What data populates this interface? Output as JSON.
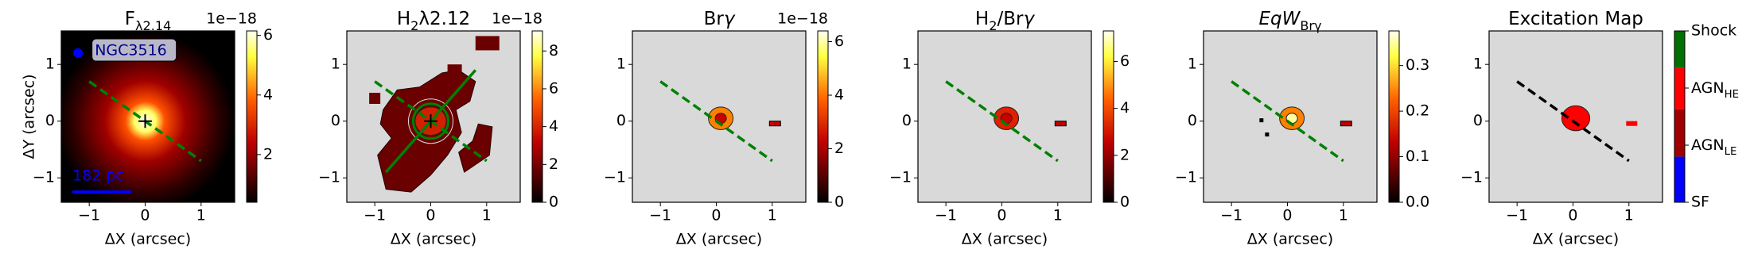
{
  "chart_data": [
    {
      "type": "image",
      "title": [
        {
          "text": "F"
        },
        {
          "text": "λ2.14",
          "sub": true
        }
      ],
      "offset_text": "1e−18",
      "xlabel": "ΔX (arcsec)",
      "ylabel": "ΔY (arcsec)",
      "colormap": "hot",
      "xlim": [
        -1.5,
        1.6
      ],
      "ylim": [
        -1.43,
        1.59
      ],
      "xticks": [
        {
          "value": -1,
          "label": "−1"
        },
        0,
        1
      ],
      "yticks": [
        {
          "value": -1,
          "label": "−1"
        },
        0,
        1
      ],
      "clim": [
        0.4,
        6.15
      ],
      "cticks": [
        2,
        4,
        6
      ],
      "annotations": [
        "NGC3516",
        "182 pc"
      ]
    },
    {
      "type": "image",
      "title": [
        {
          "text": "H"
        },
        {
          "text": "2",
          "sub": true
        },
        {
          "text": "λ2.12"
        }
      ],
      "offset_text": "1e−18",
      "xlabel": "ΔX (arcsec)",
      "colormap": "hot",
      "xlim": [
        -1.5,
        1.6
      ],
      "ylim": [
        -1.43,
        1.59
      ],
      "xticks": [
        {
          "value": -1,
          "label": "−1"
        },
        0,
        1
      ],
      "yticks": [
        {
          "value": -1,
          "label": "−1"
        },
        0,
        1
      ],
      "clim": [
        0,
        9.06
      ],
      "cticks": [
        0,
        2,
        4,
        6,
        8
      ]
    },
    {
      "type": "image",
      "title": [
        {
          "text": "Br"
        },
        {
          "text": "γ",
          "italic": true
        }
      ],
      "offset_text": "1e−18",
      "xlabel": "ΔX (arcsec)",
      "colormap": "hot",
      "xlim": [
        -1.5,
        1.6
      ],
      "ylim": [
        -1.43,
        1.59
      ],
      "xticks": [
        {
          "value": -1,
          "label": "−1"
        },
        0,
        1
      ],
      "yticks": [
        {
          "value": -1,
          "label": "−1"
        },
        0,
        1
      ],
      "clim": [
        0,
        6.4
      ],
      "cticks": [
        0,
        2,
        4,
        6
      ]
    },
    {
      "type": "image",
      "title": [
        {
          "text": "H"
        },
        {
          "text": "2",
          "sub": true
        },
        {
          "text": "/Br"
        },
        {
          "text": "γ",
          "italic": true
        }
      ],
      "xlabel": "ΔX (arcsec)",
      "colormap": "hot",
      "xlim": [
        -1.5,
        1.6
      ],
      "ylim": [
        -1.43,
        1.59
      ],
      "xticks": [
        {
          "value": -1,
          "label": "−1"
        },
        0,
        1
      ],
      "yticks": [
        {
          "value": -1,
          "label": "−1"
        },
        0,
        1
      ],
      "clim": [
        0,
        7.3
      ],
      "cticks": [
        0,
        2,
        4,
        6
      ]
    },
    {
      "type": "image",
      "title": [
        {
          "text": "EqW",
          "italic": true
        },
        {
          "text": "Brγ",
          "sub": true
        }
      ],
      "xlabel": "ΔX (arcsec)",
      "colormap": "hot",
      "xlim": [
        -1.5,
        1.6
      ],
      "ylim": [
        -1.43,
        1.59
      ],
      "xticks": [
        {
          "value": -1,
          "label": "−1"
        },
        0,
        1
      ],
      "yticks": [
        {
          "value": -1,
          "label": "−1"
        },
        0,
        1
      ],
      "clim": [
        0,
        0.376
      ],
      "cticks": [
        {
          "value": 0,
          "label": "0.0"
        },
        0.1,
        0.2,
        0.3
      ]
    },
    {
      "type": "image",
      "title": [
        {
          "text": "Excitation Map"
        }
      ],
      "xlabel": "ΔX (arcsec)",
      "colormap": "categorical",
      "xlim": [
        -1.5,
        1.6
      ],
      "ylim": [
        -1.43,
        1.59
      ],
      "xticks": [
        {
          "value": -1,
          "label": "−1"
        },
        0,
        1
      ],
      "yticks": [
        {
          "value": -1,
          "label": "−1"
        },
        0,
        1
      ],
      "clim": [
        0,
        3
      ],
      "cticks": [
        {
          "value": 0,
          "label": "SF"
        },
        {
          "value": 1,
          "label": "AGN",
          "sub": "LE"
        },
        {
          "value": 2,
          "label": "AGN",
          "sub": "HE"
        },
        {
          "value": 3,
          "label": "Shock"
        }
      ],
      "csegments": [
        {
          "color": "#0000ff",
          "from": 0,
          "to": 0.8
        },
        {
          "color": "#a00000",
          "from": 0.8,
          "to": 1.63
        },
        {
          "color": "#ff0000",
          "from": 1.63,
          "to": 2.35
        },
        {
          "color": "#007000",
          "from": 2.35,
          "to": 3
        }
      ]
    }
  ]
}
